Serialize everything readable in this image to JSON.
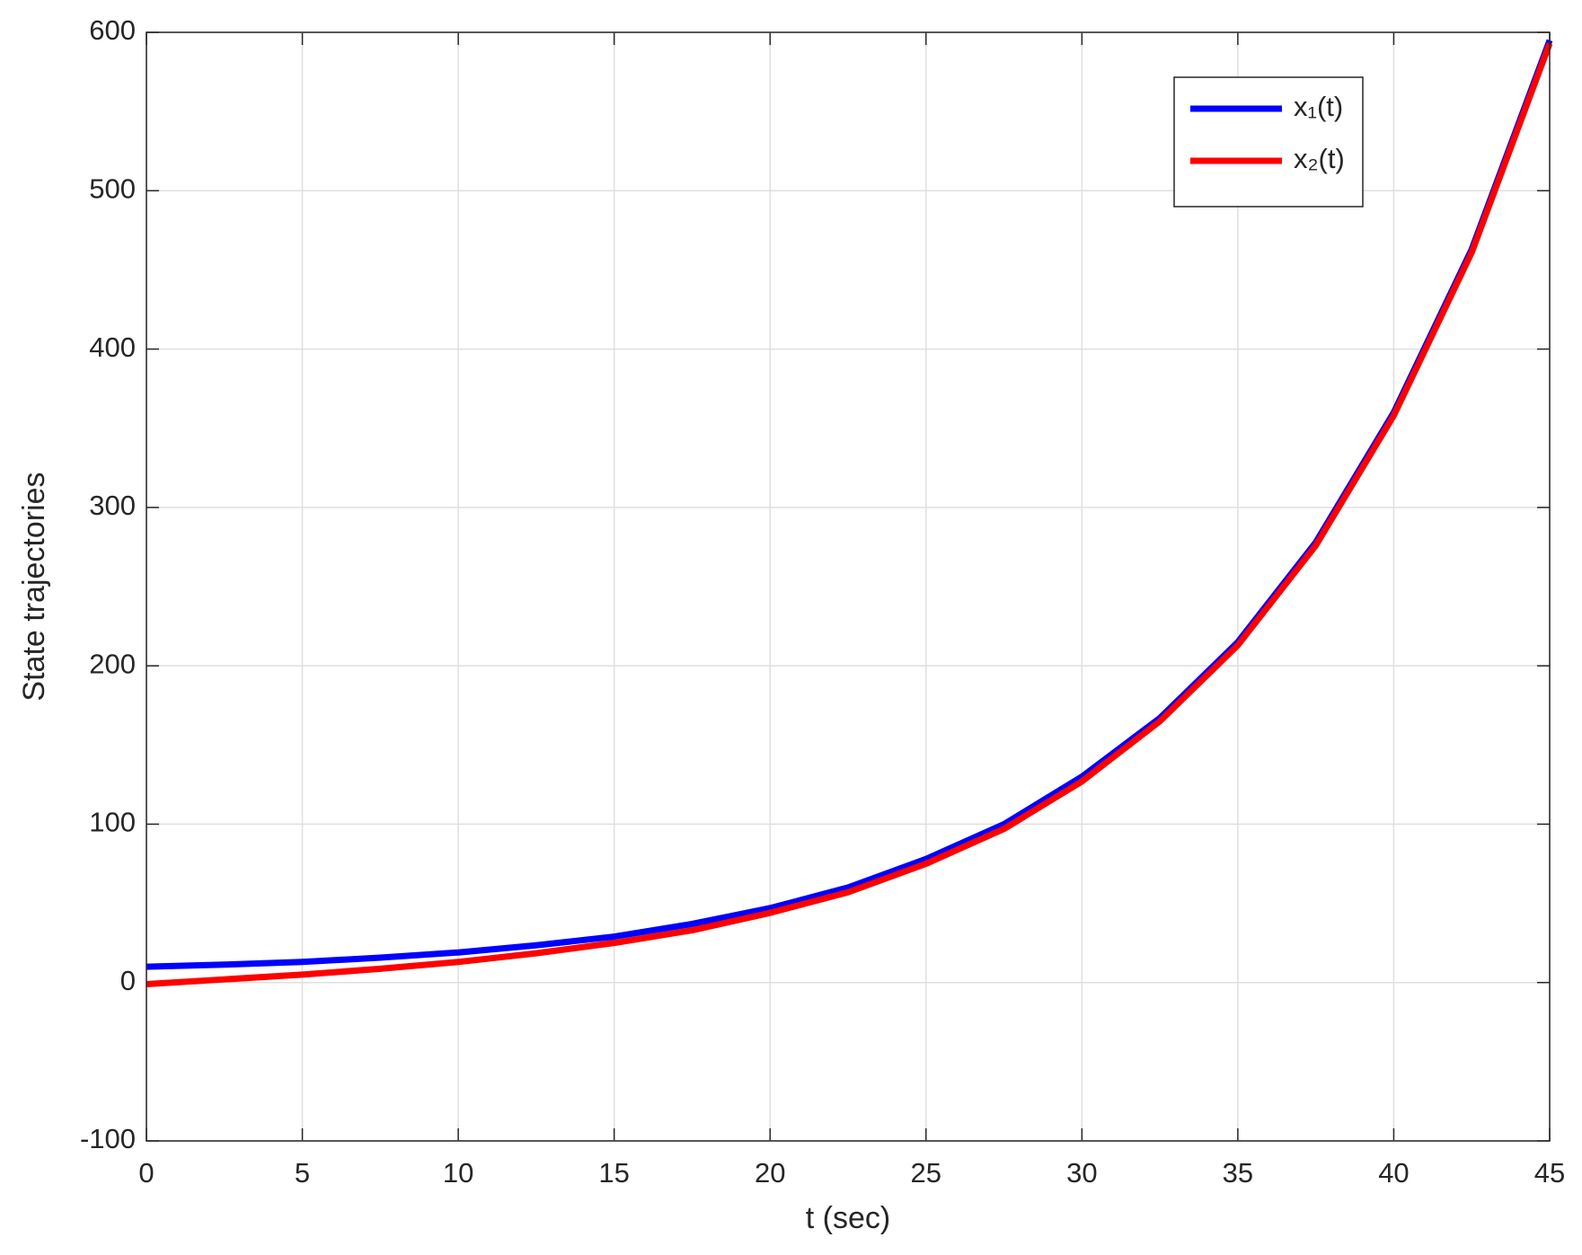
{
  "chart_data": {
    "type": "line",
    "xlabel": "t (sec)",
    "ylabel": "State trajectories",
    "x": [
      0,
      2.5,
      5,
      7.5,
      10,
      12.5,
      15,
      17.5,
      20,
      22.5,
      25,
      27.5,
      30,
      32.5,
      35,
      37.5,
      40,
      42.5,
      45
    ],
    "series": [
      {
        "name": "x₁(t)",
        "color": "#0000ff",
        "values": [
          10,
          11.3,
          13,
          15.7,
          19,
          23.5,
          29,
          37,
          47,
          60,
          78,
          100,
          130,
          167,
          215,
          278,
          360,
          463,
          595
        ]
      },
      {
        "name": "x₂(t)",
        "color": "#ff0000",
        "values": [
          -1,
          2,
          5,
          8.7,
          13,
          18.5,
          25,
          33,
          44,
          57,
          75,
          97,
          127,
          165,
          213,
          276,
          358,
          461,
          593
        ]
      }
    ],
    "xlim": [
      0,
      45
    ],
    "xticks": [
      0,
      5,
      10,
      15,
      20,
      25,
      30,
      35,
      40,
      45
    ],
    "ylim": [
      -100,
      600
    ],
    "yticks": [
      -100,
      0,
      100,
      200,
      300,
      400,
      500,
      600
    ],
    "grid": true,
    "legend": "top-right"
  }
}
